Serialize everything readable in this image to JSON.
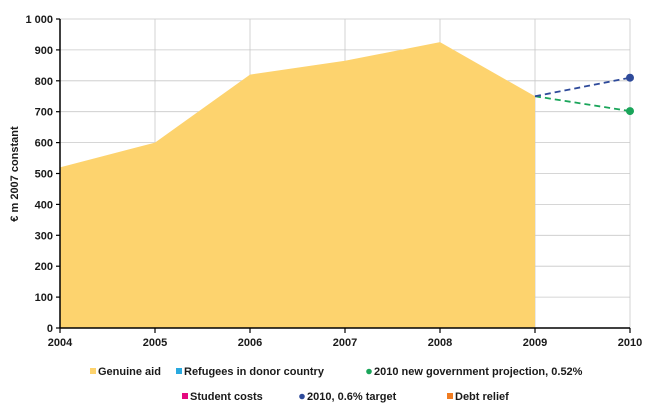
{
  "chart_data": {
    "type": "area",
    "title": "",
    "xlabel": "",
    "ylabel": "€ m 2007 constant",
    "x": [
      "2004",
      "2005",
      "2006",
      "2007",
      "2008",
      "2009",
      "2010"
    ],
    "ylim": [
      0,
      1000
    ],
    "yticks": [
      0,
      100,
      200,
      300,
      400,
      500,
      600,
      700,
      800,
      900,
      1000
    ],
    "ytick_labels": [
      "0",
      "100",
      "200",
      "300",
      "400",
      "500",
      "600",
      "700",
      "800",
      "900",
      "1 000"
    ],
    "grid": true,
    "legend_position": "bottom",
    "series": [
      {
        "name": "Genuine aid",
        "kind": "area",
        "color": "#fdd36e",
        "x": [
          "2004",
          "2005",
          "2006",
          "2007",
          "2008",
          "2009"
        ],
        "values": [
          520,
          600,
          820,
          865,
          925,
          750
        ]
      },
      {
        "name": "Refugees in donor country",
        "kind": "area",
        "color": "#29a9df",
        "x": [],
        "values": []
      },
      {
        "name": "2010 new government projection, 0.52%",
        "kind": "dashed-line",
        "color": "#1aa55a",
        "x": [
          "2009",
          "2010"
        ],
        "values": [
          750,
          702
        ]
      },
      {
        "name": "Student costs",
        "kind": "area",
        "color": "#e4097f",
        "x": [],
        "values": []
      },
      {
        "name": "2010, 0.6% target",
        "kind": "dashed-line",
        "color": "#2e4a9a",
        "x": [
          "2009",
          "2010"
        ],
        "values": [
          750,
          810
        ]
      },
      {
        "name": "Debt relief",
        "kind": "area",
        "color": "#f07c21",
        "x": [],
        "values": []
      }
    ]
  }
}
